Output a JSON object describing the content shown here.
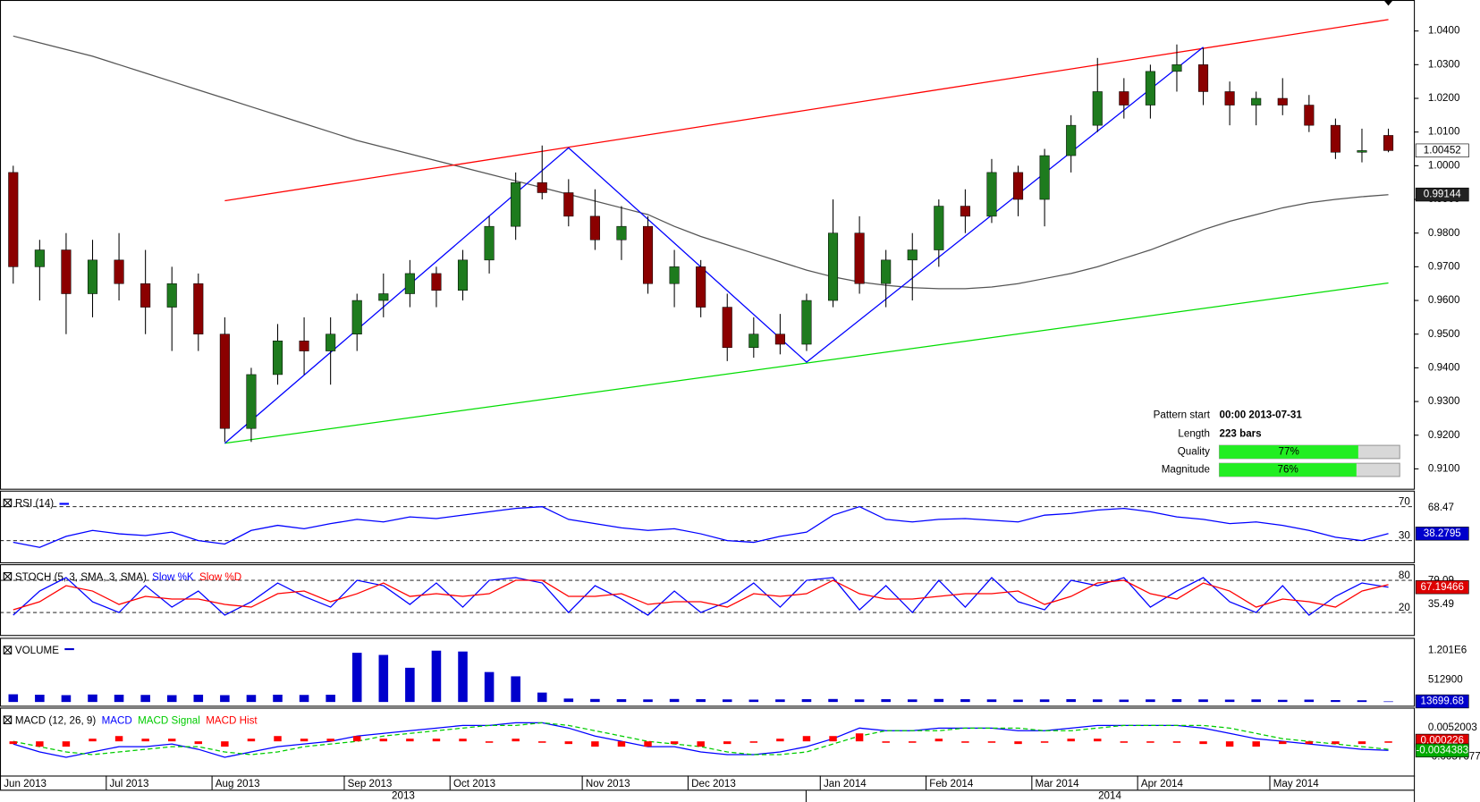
{
  "chart_data": {
    "type": "candlestick",
    "categories": [
      "Jun 2013",
      null,
      null,
      null,
      "Jul 2013",
      null,
      null,
      null,
      "Aug 2013",
      null,
      null,
      null,
      null,
      "Sep 2013",
      null,
      null,
      null,
      "Oct 2013",
      null,
      null,
      null,
      null,
      "Nov 2013",
      null,
      null,
      null,
      "Dec 2013",
      null,
      null,
      null,
      null,
      "Jan 2014",
      null,
      null,
      null,
      "Feb 2014",
      null,
      null,
      null,
      "Mar 2014",
      null,
      null,
      null,
      "Apr 2014",
      null,
      null,
      null,
      null,
      "May 2014",
      null,
      null,
      null,
      null
    ],
    "x_groups": [
      "2013",
      "2014"
    ],
    "open": [
      0.998,
      0.97,
      0.975,
      0.962,
      0.972,
      0.965,
      0.958,
      0.965,
      0.95,
      0.922,
      0.938,
      0.948,
      0.945,
      0.95,
      0.96,
      0.962,
      0.968,
      0.963,
      0.972,
      0.982,
      0.995,
      0.992,
      0.985,
      0.978,
      0.982,
      0.965,
      0.97,
      0.958,
      0.946,
      0.95,
      0.947,
      0.96,
      0.98,
      0.965,
      0.972,
      0.975,
      0.988,
      0.985,
      0.998,
      0.99,
      1.003,
      1.012,
      1.022,
      1.018,
      1.028,
      1.03,
      1.022,
      1.018,
      1.02,
      1.018,
      1.012,
      1.004,
      1.009
    ],
    "high": [
      1.0,
      0.978,
      0.98,
      0.978,
      0.98,
      0.975,
      0.97,
      0.968,
      0.955,
      0.94,
      0.953,
      0.955,
      0.955,
      0.962,
      0.968,
      0.972,
      0.97,
      0.975,
      0.985,
      0.998,
      1.006,
      0.996,
      0.993,
      0.988,
      0.985,
      0.975,
      0.972,
      0.962,
      0.955,
      0.956,
      0.962,
      0.99,
      0.985,
      0.975,
      0.98,
      0.99,
      0.993,
      1.002,
      1.0,
      1.005,
      1.015,
      1.032,
      1.026,
      1.03,
      1.036,
      1.035,
      1.025,
      1.022,
      1.026,
      1.021,
      1.014,
      1.011,
      1.011
    ],
    "low": [
      0.965,
      0.96,
      0.95,
      0.955,
      0.96,
      0.95,
      0.945,
      0.945,
      0.918,
      0.918,
      0.935,
      0.938,
      0.935,
      0.945,
      0.955,
      0.958,
      0.958,
      0.96,
      0.968,
      0.978,
      0.99,
      0.982,
      0.975,
      0.972,
      0.962,
      0.958,
      0.955,
      0.942,
      0.943,
      0.944,
      0.945,
      0.958,
      0.962,
      0.958,
      0.96,
      0.97,
      0.98,
      0.983,
      0.985,
      0.982,
      0.998,
      1.01,
      1.014,
      1.014,
      1.022,
      1.018,
      1.012,
      1.012,
      1.015,
      1.01,
      1.002,
      1.001,
      1.004
    ],
    "close": [
      0.97,
      0.975,
      0.962,
      0.972,
      0.965,
      0.958,
      0.965,
      0.95,
      0.922,
      0.938,
      0.948,
      0.945,
      0.95,
      0.96,
      0.962,
      0.968,
      0.963,
      0.972,
      0.982,
      0.995,
      0.992,
      0.985,
      0.978,
      0.982,
      0.965,
      0.97,
      0.958,
      0.946,
      0.95,
      0.947,
      0.96,
      0.98,
      0.965,
      0.972,
      0.975,
      0.988,
      0.985,
      0.998,
      0.99,
      1.003,
      1.012,
      1.022,
      1.018,
      1.028,
      1.03,
      1.022,
      1.018,
      1.02,
      1.018,
      1.012,
      1.004,
      1.0045,
      1.0045
    ],
    "up_color": "#1e7b1e",
    "down_color": "#8b0000",
    "ylim": [
      0.9041,
      1.0492
    ],
    "yticks": [
      {
        "value": 1.04,
        "label": "1.0400"
      },
      {
        "value": 1.03,
        "label": "1.0300"
      },
      {
        "value": 1.02,
        "label": "1.0200"
      },
      {
        "value": 1.01,
        "label": "1.0100"
      },
      {
        "value": 1.0,
        "label": "1.0000"
      },
      {
        "value": 0.99,
        "label": "0.9900"
      },
      {
        "value": 0.98,
        "label": "0.9800"
      },
      {
        "value": 0.97,
        "label": "0.9700"
      },
      {
        "value": 0.96,
        "label": "0.9600"
      },
      {
        "value": 0.95,
        "label": "0.9500"
      },
      {
        "value": 0.94,
        "label": "0.9400"
      },
      {
        "value": 0.93,
        "label": "0.9300"
      },
      {
        "value": 0.92,
        "label": "0.9200"
      },
      {
        "value": 0.91,
        "label": "0.9100"
      }
    ],
    "markers": [
      {
        "value": 1.00452,
        "label": "1.00452",
        "fill": "#ffffff",
        "text_color": "#000000"
      },
      {
        "value": 0.99144,
        "label": "0.99144",
        "fill": "#222222",
        "text_color": "#ffffff"
      }
    ],
    "moving_average": {
      "color": "#555555",
      "values": [
        1.0385,
        1.0365,
        1.0345,
        1.0325,
        1.03,
        1.0275,
        1.025,
        1.0225,
        1.02,
        1.0175,
        1.015,
        1.0125,
        1.01,
        1.0075,
        1.0055,
        1.0035,
        1.0015,
        0.9995,
        0.9975,
        0.9955,
        0.9935,
        0.9915,
        0.9895,
        0.9875,
        0.9855,
        0.982,
        0.979,
        0.9765,
        0.974,
        0.9715,
        0.969,
        0.967,
        0.9655,
        0.9645,
        0.9638,
        0.9635,
        0.9635,
        0.964,
        0.965,
        0.9665,
        0.968,
        0.97,
        0.9725,
        0.975,
        0.978,
        0.981,
        0.9835,
        0.9855,
        0.9875,
        0.989,
        0.99,
        0.9908,
        0.9914
      ]
    },
    "lines": [
      {
        "color": "#ff0000",
        "x": [
          8,
          52
        ],
        "values": [
          0.9896,
          1.0434
        ]
      },
      {
        "color": "#00dd00",
        "x": [
          8,
          52
        ],
        "values": [
          0.9176,
          0.9652
        ]
      },
      {
        "color": "#0000ff",
        "x": [
          8,
          21,
          30,
          45
        ],
        "values": [
          0.9176,
          1.0053,
          0.9417,
          1.0352
        ]
      }
    ],
    "pattern_info": [
      {
        "label": "Pattern start",
        "text": "00:00 2013-07-31"
      },
      {
        "label": "Length",
        "text": "223 bars"
      },
      {
        "label": "Quality",
        "value": 77,
        "value_label": "77%"
      },
      {
        "label": "Magnitude",
        "value": 76,
        "value_label": "76%"
      }
    ],
    "panels": [
      {
        "type": "line",
        "title": "RSI (14)",
        "ylim": [
          4.4,
          88.9
        ],
        "yticks": [
          70,
          30
        ],
        "markers": [
          {
            "value": 68.47,
            "label": "68.47"
          },
          {
            "value": 38.2795,
            "label": "38.2795",
            "fill": "#0000cc",
            "text_color": "#ffffff"
          }
        ],
        "series": [
          {
            "color": "#0000ff",
            "values": [
              28,
              22,
              35,
              42,
              38,
              36,
              40,
              30,
              26,
              42,
              48,
              44,
              50,
              55,
              52,
              58,
              56,
              60,
              64,
              68,
              70,
              55,
              50,
              45,
              42,
              44,
              38,
              30,
              28,
              35,
              40,
              60,
              70,
              55,
              52,
              55,
              56,
              54,
              52,
              60,
              62,
              66,
              68,
              64,
              58,
              55,
              50,
              52,
              48,
              42,
              34,
              30,
              38.2795
            ]
          }
        ]
      },
      {
        "type": "line",
        "title": "STOCH (5, 3, SMA, 3, SMA)",
        "ylim": [
          -22,
          110
        ],
        "yticks": [
          80,
          20
        ],
        "markers": [
          {
            "value": 79.09,
            "label": "79.09"
          },
          {
            "value": 35.49,
            "label": "35.49"
          },
          {
            "value": 67.19466,
            "label": "67.19466",
            "fill": "#dd0000",
            "text_color": "#ffffff"
          }
        ],
        "series": [
          {
            "name": "Slow %K",
            "color": "#0000ff",
            "values": [
              15,
              60,
              85,
              40,
              20,
              70,
              30,
              60,
              15,
              40,
              75,
              50,
              30,
              80,
              70,
              35,
              75,
              30,
              80,
              85,
              75,
              20,
              70,
              45,
              15,
              60,
              20,
              40,
              75,
              30,
              80,
              85,
              25,
              70,
              20,
              80,
              30,
              85,
              40,
              25,
              80,
              70,
              85,
              30,
              60,
              85,
              40,
              20,
              70,
              15,
              50,
              75,
              67.2
            ]
          },
          {
            "name": "Slow %D",
            "color": "#ff0000",
            "values": [
              25,
              40,
              70,
              60,
              35,
              50,
              45,
              45,
              35,
              30,
              55,
              60,
              40,
              55,
              75,
              50,
              55,
              50,
              55,
              80,
              80,
              50,
              50,
              55,
              35,
              40,
              40,
              30,
              55,
              50,
              55,
              80,
              55,
              45,
              45,
              50,
              55,
              55,
              60,
              35,
              50,
              75,
              80,
              55,
              45,
              75,
              60,
              30,
              45,
              40,
              30,
              60,
              72
            ]
          }
        ]
      },
      {
        "type": "bar",
        "title": "VOLUME",
        "ylim": [
          0,
          1500000
        ],
        "color": "#0000cc",
        "markers": [
          {
            "value": 1201000,
            "label": "1.201E6"
          },
          {
            "value": 512900,
            "label": "512900"
          },
          {
            "value": 13699.68,
            "label": "13699.68",
            "fill": "#0000cc",
            "text_color": "#ffffff"
          }
        ],
        "values": [
          180000,
          170000,
          160000,
          175000,
          170000,
          165000,
          160000,
          170000,
          160000,
          165000,
          170000,
          165000,
          170000,
          1150000,
          1100000,
          800000,
          1200000,
          1180000,
          700000,
          600000,
          220000,
          80000,
          70000,
          65000,
          60000,
          70000,
          65000,
          60000,
          55000,
          60000,
          65000,
          70000,
          60000,
          65000,
          60000,
          70000,
          65000,
          60000,
          55000,
          60000,
          65000,
          60000,
          55000,
          60000,
          65000,
          60000,
          55000,
          60000,
          50000,
          55000,
          45000,
          40000,
          13699.68
        ]
      },
      {
        "type": "macd",
        "title": "MACD (12, 26, 9)",
        "ylim": [
          -0.0129,
          0.0127
        ],
        "markers": [
          {
            "value": 0.0052003,
            "label": "0.0052003"
          },
          {
            "value": -0.0057677,
            "label": "-0.0057677"
          },
          {
            "value": 0.000226,
            "label": "0.000226",
            "fill": "#dd0000",
            "text_color": "#ffffff"
          },
          {
            "value": -0.0034383,
            "label": "-0.0034383",
            "fill": "#00aa00",
            "text_color": "#ffffff"
          }
        ],
        "series": [
          {
            "name": "MACD",
            "kind": "line",
            "color": "#0000ff",
            "values": [
              -0.001,
              -0.004,
              -0.006,
              -0.004,
              -0.002,
              -0.002,
              -0.001,
              -0.003,
              -0.006,
              -0.004,
              -0.002,
              -0.001,
              0.0,
              0.002,
              0.003,
              0.004,
              0.005,
              0.006,
              0.006,
              0.007,
              0.007,
              0.005,
              0.002,
              0.0,
              -0.002,
              -0.002,
              -0.004,
              -0.005,
              -0.005,
              -0.004,
              -0.002,
              0.001,
              0.005,
              0.004,
              0.004,
              0.005,
              0.005,
              0.005,
              0.004,
              0.004,
              0.005,
              0.006,
              0.006,
              0.006,
              0.006,
              0.005,
              0.003,
              0.001,
              0.0,
              -0.001,
              -0.002,
              -0.003,
              -0.0034
            ]
          },
          {
            "name": "MACD Signal",
            "kind": "dashed",
            "color": "#00cc00",
            "values": [
              0.0,
              -0.002,
              -0.004,
              -0.005,
              -0.004,
              -0.003,
              -0.002,
              -0.002,
              -0.004,
              -0.005,
              -0.004,
              -0.002,
              -0.001,
              0.0,
              0.002,
              0.003,
              0.004,
              0.005,
              0.006,
              0.006,
              0.007,
              0.006,
              0.004,
              0.002,
              0.0,
              -0.001,
              -0.002,
              -0.004,
              -0.005,
              -0.005,
              -0.004,
              -0.001,
              0.002,
              0.004,
              0.004,
              0.004,
              0.005,
              0.005,
              0.005,
              0.004,
              0.004,
              0.005,
              0.006,
              0.006,
              0.006,
              0.006,
              0.005,
              0.003,
              0.001,
              0.0,
              -0.001,
              -0.002,
              -0.003
            ]
          },
          {
            "name": "MACD Hist",
            "kind": "hist",
            "color": "#ff0000",
            "values": [
              -0.001,
              -0.002,
              -0.002,
              0.001,
              0.002,
              0.001,
              0.001,
              -0.001,
              -0.002,
              0.001,
              0.002,
              0.001,
              0.001,
              0.002,
              0.001,
              0.001,
              0.001,
              0.001,
              0.0,
              0.001,
              0.0,
              -0.001,
              -0.002,
              -0.002,
              -0.002,
              -0.001,
              -0.002,
              -0.001,
              0.0,
              0.001,
              0.002,
              0.002,
              0.003,
              0.0,
              0.0,
              0.001,
              0.0,
              0.0,
              -0.001,
              0.0,
              0.001,
              0.001,
              0.0,
              0.0,
              0.0,
              -0.001,
              -0.002,
              -0.002,
              -0.001,
              -0.001,
              -0.001,
              -0.001,
              -0.0004
            ]
          }
        ]
      }
    ]
  }
}
